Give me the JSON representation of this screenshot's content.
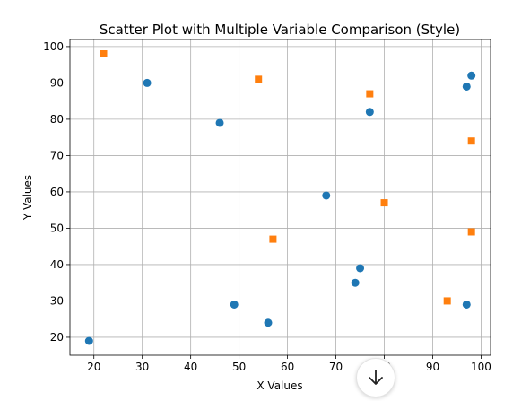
{
  "chart_data": {
    "type": "scatter",
    "title": "Scatter Plot with Multiple Variable Comparison (Style)",
    "xlabel": "X Values",
    "ylabel": "Y Values",
    "xlim": [
      15.05,
      101.95
    ],
    "ylim": [
      15.05,
      101.95
    ],
    "xticks": [
      20,
      30,
      40,
      50,
      60,
      70,
      80,
      90,
      100
    ],
    "yticks": [
      20,
      30,
      40,
      50,
      60,
      70,
      80,
      90,
      100
    ],
    "grid": true,
    "series": [
      {
        "marker": "circle",
        "color": "#1f77b4",
        "x": [
          19,
          31,
          46,
          49,
          56,
          68,
          74,
          75,
          77,
          97,
          97,
          98
        ],
        "y": [
          19,
          90,
          79,
          29,
          24,
          59,
          35,
          39,
          82,
          29,
          89,
          92
        ]
      },
      {
        "marker": "square",
        "color": "#ff7f0e",
        "x": [
          22,
          54,
          57,
          77,
          80,
          93,
          98,
          98
        ],
        "y": [
          98,
          91,
          47,
          87,
          57,
          30,
          74,
          49
        ]
      }
    ]
  },
  "ui": {
    "scroll_button_icon": "arrow-down-icon"
  }
}
